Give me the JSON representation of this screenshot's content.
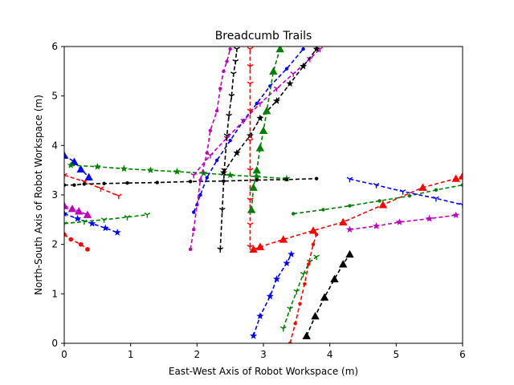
{
  "chart_data": {
    "type": "line",
    "title": "Breadcumb Trails",
    "xlabel": "East-West Axis of Robot Workspace (m)",
    "ylabel": "North-South Axis of Robot Workspace (m)",
    "xlim": [
      0,
      6
    ],
    "ylim": [
      0,
      6
    ],
    "xticks": [
      "0",
      "1",
      "2",
      "3",
      "4",
      "5",
      "6"
    ],
    "yticks": [
      "0",
      "1",
      "2",
      "3",
      "4",
      "5",
      "6"
    ],
    "grid": false,
    "legend": "none",
    "line_style": "dashed",
    "series": [
      {
        "color": "#ff0000",
        "marker": "circle",
        "x": [
          0.0,
          0.1,
          0.25,
          0.35
        ],
        "y": [
          2.2,
          2.1,
          2.0,
          1.9
        ]
      },
      {
        "color": "#0000ff",
        "marker": "triangle",
        "x": [
          0.0,
          0.15,
          0.25,
          0.37
        ],
        "y": [
          3.8,
          3.67,
          3.52,
          3.36
        ]
      },
      {
        "color": "#008000",
        "marker": "star",
        "x": [
          0.1,
          0.5,
          0.9,
          1.3,
          1.7,
          2.1,
          2.5,
          2.9,
          3.35
        ],
        "y": [
          3.6,
          3.57,
          3.53,
          3.5,
          3.47,
          3.44,
          3.4,
          3.37,
          3.33
        ]
      },
      {
        "color": "#ff0000",
        "marker": "tri",
        "x": [
          0.0,
          0.3,
          0.55,
          0.82
        ],
        "y": [
          3.4,
          3.27,
          3.13,
          2.98
        ]
      },
      {
        "color": "#000000",
        "marker": "point",
        "x": [
          0.0,
          0.15,
          0.3,
          0.6,
          0.95,
          1.4,
          1.9,
          2.4,
          2.9,
          3.35,
          3.8
        ],
        "y": [
          3.2,
          3.2,
          3.22,
          3.23,
          3.24,
          3.25,
          3.27,
          3.28,
          3.3,
          3.31,
          3.33
        ]
      },
      {
        "color": "#bf00bf",
        "marker": "triangle",
        "x": [
          0.0,
          0.12,
          0.22,
          0.35
        ],
        "y": [
          2.78,
          2.72,
          2.67,
          2.6
        ]
      },
      {
        "color": "#0000ff",
        "marker": "star",
        "x": [
          0.0,
          0.2,
          0.42,
          0.62,
          0.8
        ],
        "y": [
          2.62,
          2.52,
          2.42,
          2.33,
          2.24
        ]
      },
      {
        "color": "#008000",
        "marker": "tri",
        "x": [
          0.0,
          0.3,
          0.6,
          0.95,
          1.25
        ],
        "y": [
          2.42,
          2.46,
          2.5,
          2.55,
          2.6
        ]
      },
      {
        "color": "#bf00bf",
        "marker": "point",
        "x": [
          1.9,
          1.95,
          2.0,
          2.05,
          2.15,
          2.2,
          2.3,
          2.35,
          2.4,
          2.45,
          2.5
        ],
        "y": [
          1.9,
          2.3,
          2.8,
          3.3,
          3.85,
          4.3,
          4.7,
          5.15,
          5.5,
          5.7,
          5.95
        ]
      },
      {
        "color": "#0000ff",
        "marker": "point",
        "x": [
          1.95,
          2.05,
          2.15,
          2.3,
          2.5,
          2.7,
          2.9,
          3.1,
          3.35,
          3.6
        ],
        "y": [
          2.65,
          3.0,
          3.35,
          3.7,
          4.1,
          4.5,
          4.85,
          5.2,
          5.55,
          5.95
        ]
      },
      {
        "color": "#bf00bf",
        "marker": "tri",
        "x": [
          1.95,
          2.2,
          2.45,
          2.7,
          2.95,
          3.2,
          3.45,
          3.7,
          3.85
        ],
        "y": [
          3.4,
          3.8,
          4.15,
          4.5,
          4.85,
          5.15,
          5.45,
          5.75,
          5.95
        ]
      },
      {
        "color": "#000000",
        "marker": "tri",
        "x": [
          2.35,
          2.38,
          2.41,
          2.45,
          2.48,
          2.52,
          2.55,
          2.58,
          2.6
        ],
        "y": [
          1.9,
          2.7,
          3.5,
          4.2,
          4.6,
          5.0,
          5.45,
          5.7,
          5.95
        ]
      },
      {
        "color": "#000000",
        "marker": "star",
        "x": [
          2.4,
          2.6,
          2.8,
          2.95,
          3.2,
          3.4,
          3.6,
          3.8
        ],
        "y": [
          3.45,
          3.85,
          4.2,
          4.55,
          4.9,
          5.25,
          5.6,
          5.95
        ]
      },
      {
        "color": "#ff0000",
        "marker": "tri",
        "x": [
          2.8,
          2.8,
          2.8,
          2.8,
          2.8,
          2.8,
          2.8,
          2.8,
          2.8
        ],
        "y": [
          1.95,
          2.4,
          2.9,
          3.5,
          4.1,
          4.7,
          5.25,
          5.6,
          5.95
        ]
      },
      {
        "color": "#008000",
        "marker": "triangle",
        "x": [
          2.82,
          2.85,
          2.9,
          2.95,
          3.0,
          3.05,
          3.15,
          3.25
        ],
        "y": [
          2.7,
          3.15,
          3.5,
          3.95,
          4.3,
          4.7,
          5.5,
          5.95
        ]
      },
      {
        "color": "#ff0000",
        "marker": "triangle",
        "x": [
          2.85,
          2.95,
          3.3,
          3.75,
          4.2,
          4.8,
          5.4,
          5.9,
          6.0
        ],
        "y": [
          1.9,
          1.95,
          2.1,
          2.28,
          2.45,
          2.8,
          3.15,
          3.33,
          3.38
        ]
      },
      {
        "color": "#008000",
        "marker": "point",
        "x": [
          3.45,
          3.9,
          4.3,
          4.75,
          5.2,
          5.6,
          6.0
        ],
        "y": [
          2.62,
          2.7,
          2.78,
          2.88,
          2.98,
          3.1,
          3.2
        ]
      },
      {
        "color": "#0000ff",
        "marker": "tri",
        "x": [
          4.3,
          4.7,
          5.1,
          5.6,
          6.0
        ],
        "y": [
          3.32,
          3.2,
          3.07,
          2.93,
          2.8
        ]
      },
      {
        "color": "#bf00bf",
        "marker": "star",
        "x": [
          4.3,
          4.7,
          5.05,
          5.5,
          5.9
        ],
        "y": [
          2.3,
          2.37,
          2.45,
          2.52,
          2.59
        ]
      },
      {
        "color": "#0000ff",
        "marker": "star",
        "x": [
          2.85,
          2.95,
          3.1,
          3.2,
          3.35,
          3.42
        ],
        "y": [
          0.15,
          0.55,
          0.95,
          1.3,
          1.62,
          1.8
        ]
      },
      {
        "color": "#008000",
        "marker": "tri",
        "x": [
          3.3,
          3.4,
          3.5,
          3.6,
          3.7,
          3.8
        ],
        "y": [
          0.3,
          0.7,
          1.05,
          1.4,
          1.65,
          1.75
        ]
      },
      {
        "color": "#ff0000",
        "marker": "point",
        "x": [
          3.4,
          3.48,
          3.55,
          3.62,
          3.68,
          3.75,
          3.8
        ],
        "y": [
          0.0,
          0.4,
          0.8,
          1.2,
          1.6,
          2.0,
          2.2
        ]
      },
      {
        "color": "#000000",
        "marker": "triangle",
        "x": [
          3.65,
          3.78,
          3.92,
          4.07,
          4.2,
          4.3
        ],
        "y": [
          0.15,
          0.55,
          0.93,
          1.3,
          1.6,
          1.8
        ]
      }
    ]
  }
}
